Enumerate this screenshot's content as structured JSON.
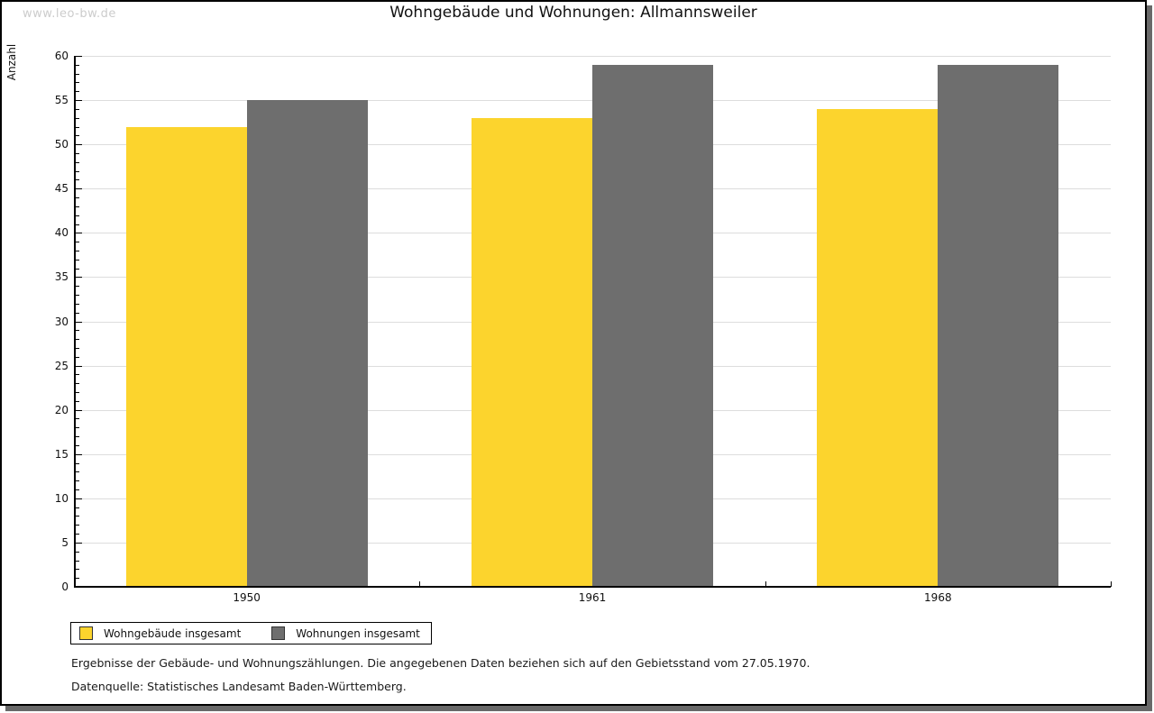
{
  "watermark": "www.leo-bw.de",
  "chart_data": {
    "type": "bar",
    "title": "Wohngebäude und Wohnungen: Allmannsweiler",
    "xlabel": "",
    "ylabel": "Anzahl",
    "categories": [
      "1950",
      "1961",
      "1968"
    ],
    "series": [
      {
        "name": "Wohngebäude insgesamt",
        "color": "#fcd42d",
        "values": [
          52,
          53,
          54
        ]
      },
      {
        "name": "Wohnungen insgesamt",
        "color": "#6e6e6e",
        "values": [
          55,
          59,
          59
        ]
      }
    ],
    "ylim": [
      0,
      60
    ],
    "ytick_step": 5,
    "yminor_step": 1,
    "grid": true,
    "legend_position": "bottom-left"
  },
  "colors": {
    "grid": "#dddddd",
    "axis": "#000000",
    "watermark": "#cccccc",
    "frame_shadow": "#696969"
  },
  "footnotes": [
    "Ergebnisse der Gebäude- und Wohnungszählungen. Die angegebenen Daten beziehen sich auf den Gebietsstand vom 27.05.1970.",
    "Datenquelle: Statistisches Landesamt Baden-Württemberg."
  ]
}
